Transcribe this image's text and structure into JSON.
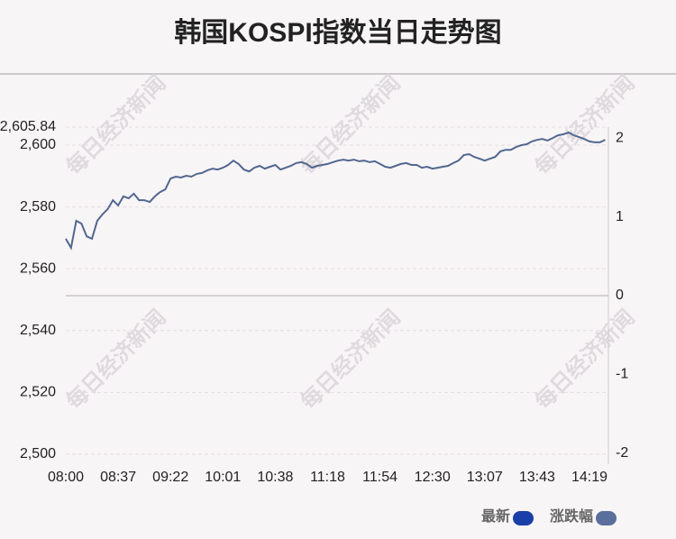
{
  "chart_data": {
    "type": "line",
    "title": "韩国KOSPI指数当日走势图",
    "watermark": "每日经济新闻",
    "categories": [
      "08:00",
      null,
      null,
      null,
      null,
      null,
      null,
      null,
      null,
      null,
      "08:37",
      null,
      null,
      null,
      null,
      null,
      null,
      null,
      null,
      null,
      "09:22",
      null,
      null,
      null,
      null,
      null,
      null,
      null,
      null,
      null,
      "10:01",
      null,
      null,
      null,
      null,
      null,
      null,
      null,
      null,
      null,
      "10:38",
      null,
      null,
      null,
      null,
      null,
      null,
      null,
      null,
      null,
      "11:18",
      null,
      null,
      null,
      null,
      null,
      null,
      null,
      null,
      null,
      "11:54",
      null,
      null,
      null,
      null,
      null,
      null,
      null,
      null,
      null,
      "12:30",
      null,
      null,
      null,
      null,
      null,
      null,
      null,
      null,
      null,
      "13:07",
      null,
      null,
      null,
      null,
      null,
      null,
      null,
      null,
      null,
      "13:43",
      null,
      null,
      null,
      null,
      null,
      null,
      null,
      null,
      null,
      "14:19",
      null,
      null,
      null
    ],
    "series": [
      {
        "name": "最新",
        "color": "#52678f",
        "values": [
          2569.7,
          2566.8,
          2575.5,
          2574.6,
          2570.5,
          2569.7,
          2575.5,
          2577.6,
          2579.3,
          2582.2,
          2580.5,
          2583.4,
          2582.8,
          2584.3,
          2582.2,
          2582.2,
          2581.6,
          2583.4,
          2584.8,
          2585.7,
          2589.2,
          2589.8,
          2589.5,
          2590.1,
          2589.8,
          2590.7,
          2591.0,
          2591.8,
          2592.4,
          2592.1,
          2592.7,
          2593.6,
          2595.0,
          2593.9,
          2592.1,
          2591.5,
          2592.7,
          2593.3,
          2592.4,
          2593.0,
          2593.6,
          2592.1,
          2592.7,
          2593.3,
          2594.2,
          2594.5,
          2593.9,
          2592.7,
          2593.3,
          2593.6,
          2593.9,
          2594.5,
          2595.0,
          2595.3,
          2595.0,
          2595.3,
          2594.8,
          2595.0,
          2594.5,
          2594.8,
          2593.9,
          2593.0,
          2592.7,
          2593.3,
          2593.9,
          2594.2,
          2593.6,
          2593.6,
          2592.7,
          2593.0,
          2592.4,
          2592.7,
          2593.0,
          2593.3,
          2594.2,
          2595.0,
          2596.8,
          2597.1,
          2596.2,
          2595.6,
          2595.0,
          2595.6,
          2596.2,
          2598.0,
          2598.5,
          2598.5,
          2599.4,
          2600.0,
          2600.3,
          2601.2,
          2601.7,
          2602.0,
          2601.5,
          2602.3,
          2603.2,
          2603.5,
          2604.1,
          2603.2,
          2602.6,
          2602.0,
          2601.2,
          2600.9,
          2600.9,
          2601.7
        ]
      },
      {
        "name": "涨跌幅",
        "color": "#5b6f9c",
        "legend_only": true
      }
    ],
    "legend_colors_first": "#1a3fa8",
    "ylim": [
      2496.76,
      2605.84
    ],
    "yticks": [
      {
        "value": 2500,
        "label": "2,500"
      },
      {
        "value": 2520,
        "label": "2,520"
      },
      {
        "value": 2540,
        "label": "2,540"
      },
      {
        "value": 2560,
        "label": "2,560"
      },
      {
        "value": 2580,
        "label": "2,580"
      },
      {
        "value": 2600,
        "label": "2,600"
      },
      {
        "value": 2605.84,
        "label": "2,605.84"
      }
    ],
    "y2lim": [
      -2.14,
      2.14
    ],
    "y2ticks": [
      -2,
      -1,
      0,
      1,
      2
    ],
    "grid": true
  }
}
